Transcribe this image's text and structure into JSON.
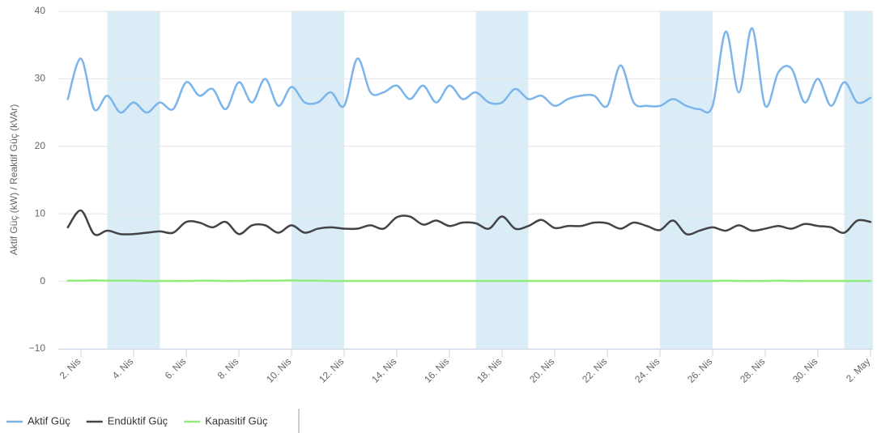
{
  "chart_data": {
    "type": "line",
    "y_axis_label": "Aktif Güç (kW) / Reaktif Güç (kVAr)",
    "categories": [
      null,
      "2. Nis",
      null,
      null,
      null,
      "4. Nis",
      null,
      null,
      null,
      "6. Nis",
      null,
      null,
      null,
      "8. Nis",
      null,
      null,
      null,
      "10. Nis",
      null,
      null,
      null,
      "12. Nis",
      null,
      null,
      null,
      "14. Nis",
      null,
      null,
      null,
      "16. Nis",
      null,
      null,
      null,
      "18. Nis",
      null,
      null,
      null,
      "20. Nis",
      null,
      null,
      null,
      "22. Nis",
      null,
      null,
      null,
      "24. Nis",
      null,
      null,
      null,
      "26. Nis",
      null,
      null,
      null,
      "28. Nis",
      null,
      null,
      null,
      "30. Nis",
      null,
      null,
      null,
      "2. May"
    ],
    "series": [
      {
        "name": "Aktif Güç",
        "color": "#7cb5ec",
        "values": [
          27,
          33,
          25.5,
          27.5,
          25,
          26.5,
          25,
          26.5,
          25.5,
          29.5,
          27.5,
          28.5,
          25.5,
          29.5,
          26.5,
          30,
          26,
          28.8,
          26.5,
          26.5,
          28,
          26,
          33,
          28,
          28,
          29,
          27,
          29,
          26.5,
          29,
          27,
          28,
          26.5,
          26.5,
          28.5,
          27,
          27.5,
          26,
          27,
          27.5,
          27.5,
          26,
          32,
          26.5,
          26,
          26,
          27,
          26,
          25.5,
          26,
          37,
          28,
          37.5,
          26,
          31,
          31.5,
          26.5,
          30,
          26,
          29.5,
          26.5,
          27.2
        ]
      },
      {
        "name": "Endüktif Güç",
        "color": "#434348",
        "values": [
          8,
          10.5,
          7,
          7.5,
          7,
          7,
          7.2,
          7.4,
          7.2,
          8.8,
          8.7,
          8,
          8.8,
          7,
          8.3,
          8.3,
          7.2,
          8.3,
          7.2,
          7.8,
          8,
          7.8,
          7.8,
          8.3,
          7.8,
          9.5,
          9.6,
          8.4,
          9,
          8.2,
          8.7,
          8.6,
          7.8,
          9.6,
          7.8,
          8.2,
          9.1,
          7.9,
          8.2,
          8.2,
          8.7,
          8.6,
          7.8,
          8.7,
          8.2,
          7.6,
          9,
          7,
          7.5,
          8,
          7.5,
          8.3,
          7.5,
          7.8,
          8.2,
          7.8,
          8.5,
          8.2,
          8,
          7.2,
          9,
          8.8
        ]
      },
      {
        "name": "Kapasitif Güç",
        "color": "#90ed7d",
        "values": [
          0.1,
          0.1,
          0.15,
          0.1,
          0.1,
          0.1,
          0.05,
          0.05,
          0.05,
          0.05,
          0.1,
          0.1,
          0.05,
          0.05,
          0.1,
          0.1,
          0.1,
          0.15,
          0.1,
          0.1,
          0.05,
          0.05,
          0.05,
          0.05,
          0.05,
          0.05,
          0.05,
          0.05,
          0.05,
          0.05,
          0.05,
          0.05,
          0.05,
          0.05,
          0.05,
          0.05,
          0.05,
          0.05,
          0.05,
          0.05,
          0.05,
          0.05,
          0.05,
          0.05,
          0.05,
          0.05,
          0.05,
          0.05,
          0.05,
          0.05,
          0.1,
          0.05,
          0.05,
          0.05,
          0.1,
          0.05,
          0.05,
          0.05,
          0.05,
          0.05,
          0.05,
          0.05
        ]
      }
    ],
    "ylim": [
      -10,
      40
    ],
    "yticks": [
      {
        "value": -10,
        "label": "−10"
      },
      0,
      10,
      20,
      30,
      40
    ],
    "grid": true,
    "plot_bands": [
      {
        "from": 3,
        "to": 7
      },
      {
        "from": 17,
        "to": 21
      },
      {
        "from": 31,
        "to": 35
      },
      {
        "from": 45,
        "to": 49
      },
      {
        "from": 59,
        "to": 63
      }
    ],
    "plot_band_color": "#daedf7",
    "legend": "bottom-left"
  }
}
